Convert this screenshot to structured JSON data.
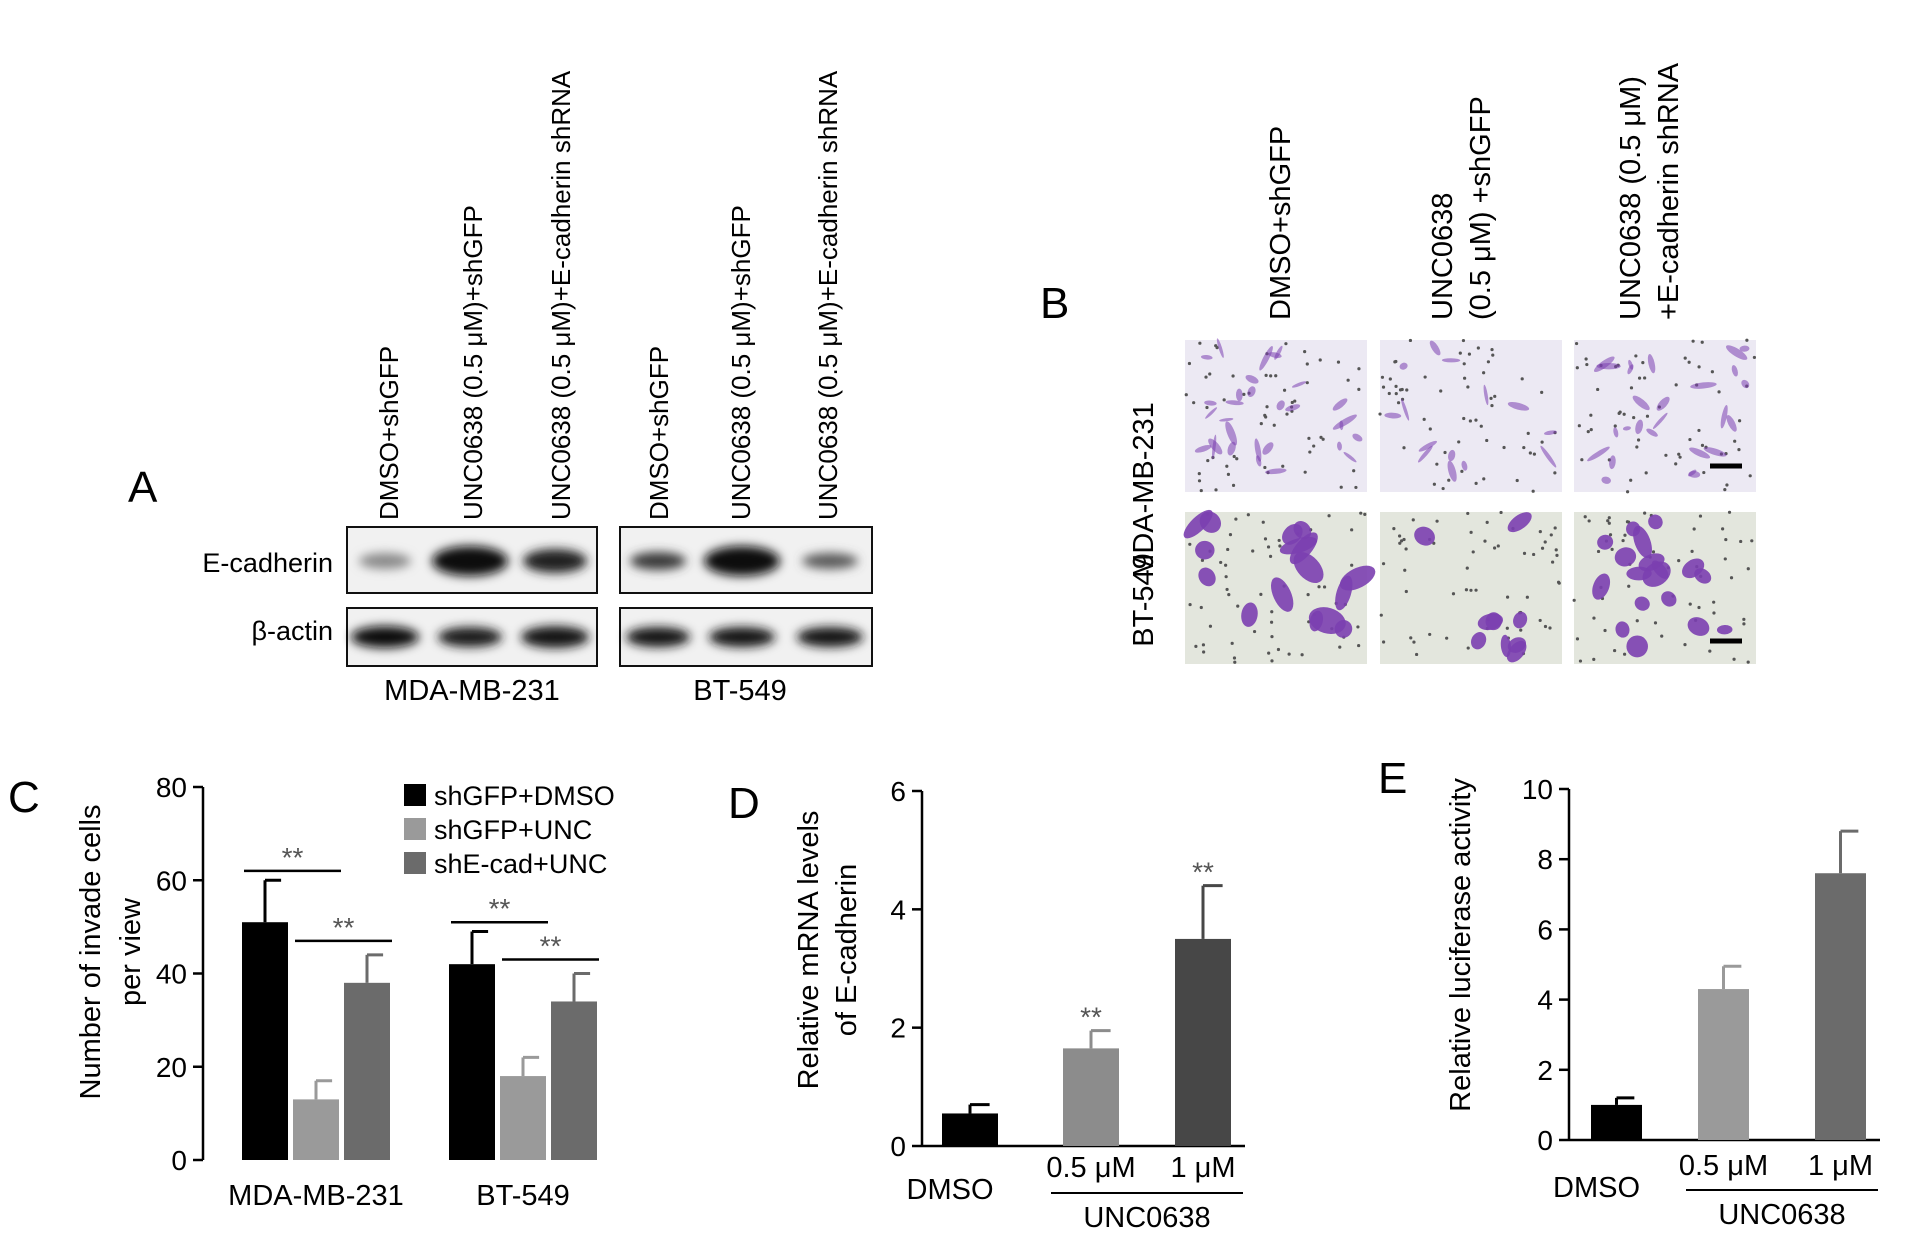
{
  "panel_letters": {
    "A": "A",
    "B": "B",
    "C": "C",
    "D": "D",
    "E": "E"
  },
  "panel_a": {
    "lane_labels": [
      "DMSO+shGFP",
      "UNC0638 (0.5 μM)+shGFP",
      "UNC0638 (0.5 μM)+E-cadherin shRNA",
      "DMSO+shGFP",
      "UNC0638 (0.5 μM)+shGFP",
      "UNC0638 (0.5 μM)+E-cadherin shRNA"
    ],
    "row_labels": [
      "E-cadherin",
      "β-actin"
    ],
    "cell_lines": [
      "MDA-MB-231",
      "BT-549"
    ]
  },
  "panel_b": {
    "column_labels": [
      [
        "DMSO+shGFP"
      ],
      [
        "UNC0638",
        "(0.5 μM) +shGFP"
      ],
      [
        "UNC0638 (0.5 μM)",
        "+E-cadherin shRNA"
      ]
    ],
    "row_labels": [
      "MDA-MB-231",
      "BT-549"
    ],
    "colors": {
      "stain": "#7b3fb0",
      "background": "#ece9f3"
    }
  },
  "chart_data": [
    {
      "panel": "C",
      "type": "bar",
      "categories": [
        "MDA-MB-231",
        "BT-549"
      ],
      "series": [
        {
          "name": "shGFP+DMSO",
          "values": [
            51,
            42
          ],
          "errors": [
            9,
            7
          ],
          "color": "#000000"
        },
        {
          "name": "shGFP+UNC",
          "values": [
            13,
            18
          ],
          "errors": [
            4,
            4
          ],
          "color": "#9a9a9a"
        },
        {
          "name": "shE-cad+UNC",
          "values": [
            38,
            34
          ],
          "errors": [
            6,
            6
          ],
          "color": "#6b6b6b"
        }
      ],
      "ylabel": [
        "Number of invade cells",
        "per view"
      ],
      "ylim": [
        0,
        80
      ],
      "yticks": [
        "0",
        "20",
        "40",
        "60",
        "80"
      ],
      "significance": [
        {
          "label": "**",
          "category": 0,
          "from": 0,
          "to": 1,
          "y": 62
        },
        {
          "label": "**",
          "category": 0,
          "from": 1,
          "to": 2,
          "y": 47
        },
        {
          "label": "**",
          "category": 1,
          "from": 0,
          "to": 1,
          "y": 51
        },
        {
          "label": "**",
          "category": 1,
          "from": 1,
          "to": 2,
          "y": 43
        }
      ],
      "legend": "top-right"
    },
    {
      "panel": "D",
      "type": "bar",
      "categories": [
        "DMSO",
        "0.5 μM",
        "1 μM"
      ],
      "values": [
        0.55,
        1.65,
        3.5
      ],
      "errors": [
        0.15,
        0.3,
        0.9
      ],
      "colors": [
        "#000000",
        "#8c8c8c",
        "#474747"
      ],
      "stars": [
        "",
        "**",
        "**"
      ],
      "ylabel": [
        "Relative mRNA levels",
        "of E-cadherin"
      ],
      "ylim": [
        0,
        6
      ],
      "yticks": [
        "0",
        "2",
        "4",
        "6"
      ],
      "group_label": "UNC0638"
    },
    {
      "panel": "E",
      "type": "bar",
      "categories": [
        "DMSO",
        "0.5 μM",
        "1 μM"
      ],
      "values": [
        1.0,
        4.3,
        7.6
      ],
      "errors": [
        0.2,
        0.65,
        1.2
      ],
      "colors": [
        "#000000",
        "#9a9a9a",
        "#6b6b6b"
      ],
      "ylabel": "Relative luciferase activity",
      "ylim": [
        0,
        10
      ],
      "yticks": [
        "0",
        "2",
        "4",
        "6",
        "8",
        "10"
      ],
      "group_label": "UNC0638"
    }
  ]
}
